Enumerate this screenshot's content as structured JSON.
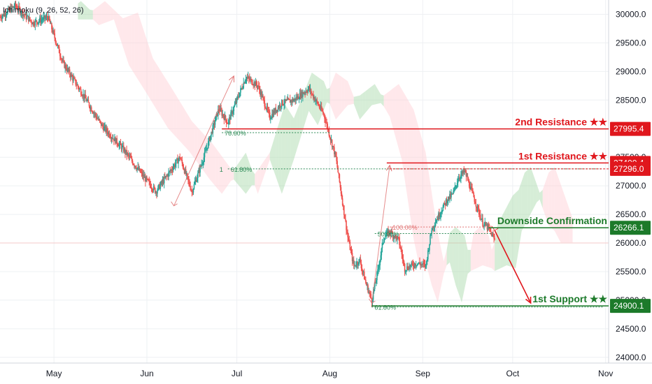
{
  "indicator_label": "Ichimoku (9, 26, 52, 26)",
  "colors": {
    "up": "#26a69a",
    "down": "#ef5350",
    "resistance": "#e0171d",
    "support": "#1c7a2a",
    "cloud_green": "#a5d6a7",
    "cloud_red": "#ffcdd2",
    "fib": "#2e8b57",
    "fib_red": "#e07070",
    "arrow": "#e0171d"
  },
  "chart_data": {
    "type": "candlestick",
    "x_range": [
      "2020-04-13",
      "2020-11-02"
    ],
    "ylim": [
      23900,
      30250
    ],
    "y_ticks": [
      24000,
      24500,
      25000,
      25500,
      26000,
      26500,
      27000,
      27500,
      28000,
      28500,
      29000,
      29500,
      30000
    ],
    "y_tick_labels": [
      "24000.0",
      "24500.0",
      "25000.0",
      "25500.0",
      "26000.0",
      "26500.0",
      "27000.0",
      "27500.0",
      "28000.0",
      "28500.0",
      "29000.0",
      "29500.0",
      "30000.0"
    ],
    "x_ticks": [
      {
        "date": "2020-05-01",
        "label": "May"
      },
      {
        "date": "2020-06-01",
        "label": "Jun"
      },
      {
        "date": "2020-07-01",
        "label": "Jul"
      },
      {
        "date": "2020-08-01",
        "label": "Aug"
      },
      {
        "date": "2020-09-01",
        "label": "Sep"
      },
      {
        "date": "2020-10-01",
        "label": "Oct"
      },
      {
        "date": "2020-11-01",
        "label": "Nov"
      }
    ],
    "price_path": [
      [
        "2020-04-13",
        29950
      ],
      [
        "2020-04-18",
        30150
      ],
      [
        "2020-04-24",
        29850
      ],
      [
        "2020-04-29",
        29950
      ],
      [
        "2020-05-04",
        29150
      ],
      [
        "2020-05-10",
        28650
      ],
      [
        "2020-05-17",
        28050
      ],
      [
        "2020-05-24",
        27650
      ],
      [
        "2020-05-31",
        27150
      ],
      [
        "2020-06-04",
        26900
      ],
      [
        "2020-06-08",
        27200
      ],
      [
        "2020-06-12",
        27500
      ],
      [
        "2020-06-16",
        26900
      ],
      [
        "2020-06-20",
        27500
      ],
      [
        "2020-06-25",
        28350
      ],
      [
        "2020-06-28",
        28100
      ],
      [
        "2020-07-01",
        28500
      ],
      [
        "2020-07-04",
        28900
      ],
      [
        "2020-07-08",
        28750
      ],
      [
        "2020-07-12",
        28200
      ],
      [
        "2020-07-16",
        28450
      ],
      [
        "2020-07-20",
        28500
      ],
      [
        "2020-07-25",
        28700
      ],
      [
        "2020-07-30",
        28250
      ],
      [
        "2020-08-03",
        27500
      ],
      [
        "2020-08-05",
        26800
      ],
      [
        "2020-08-07",
        26100
      ],
      [
        "2020-08-09",
        25600
      ],
      [
        "2020-08-11",
        25700
      ],
      [
        "2020-08-13",
        25300
      ],
      [
        "2020-08-15",
        25000
      ],
      [
        "2020-08-17",
        25500
      ],
      [
        "2020-08-19",
        26100
      ],
      [
        "2020-08-21",
        26200
      ],
      [
        "2020-08-24",
        26050
      ],
      [
        "2020-08-26",
        25550
      ],
      [
        "2020-08-30",
        25650
      ],
      [
        "2020-09-02",
        25600
      ],
      [
        "2020-09-04",
        26250
      ],
      [
        "2020-09-06",
        26450
      ],
      [
        "2020-09-09",
        26750
      ],
      [
        "2020-09-11",
        26850
      ],
      [
        "2020-09-13",
        27150
      ],
      [
        "2020-09-15",
        27250
      ],
      [
        "2020-09-17",
        26950
      ],
      [
        "2020-09-19",
        26650
      ],
      [
        "2020-09-21",
        26350
      ],
      [
        "2020-09-23",
        26250
      ],
      [
        "2020-09-25",
        26050
      ]
    ],
    "levels": [
      {
        "label": "2nd Resistance ★★",
        "value": 27995.4,
        "badge": "27995.4",
        "kind": "resistance",
        "from": "2020-06-26"
      },
      {
        "label": "1st Resistance ★★",
        "value": 27400.4,
        "badge": "27400.4",
        "kind": "resistance",
        "from": "2020-08-20"
      },
      {
        "label": "Downside Confirmation",
        "value": 26266.1,
        "badge": "26266.1",
        "kind": "support",
        "from": "2020-09-23"
      },
      {
        "label": "1st Support ★★",
        "value": 24900.1,
        "badge": "24900.1",
        "kind": "support",
        "from": "2020-08-15"
      }
    ],
    "extra_badge": {
      "value": 27296.0,
      "text": "27296.0"
    },
    "fib_lines": [
      {
        "value": 27930,
        "label": "78.60%",
        "from": "2020-06-26",
        "to": "2020-08-01"
      },
      {
        "value": 27296,
        "label": "61.80%",
        "from": "2020-06-28",
        "to": "2020-10-31",
        "prefix": "1"
      },
      {
        "value": 26165,
        "label": "50.00%",
        "from": "2020-08-16",
        "to": "2020-09-24"
      },
      {
        "value": 26280,
        "label": "100.00%",
        "from": "2020-08-21",
        "to": "2020-09-22"
      },
      {
        "value": 24880,
        "label": "61.80%",
        "from": "2020-08-15",
        "to": "2020-10-31"
      }
    ],
    "trend_arrows": [
      {
        "from": [
          "2020-06-10",
          26650
        ],
        "to": [
          "2020-06-30",
          28920
        ],
        "kind": "fib"
      },
      {
        "from": [
          "2020-08-15",
          24950
        ],
        "to": [
          "2020-08-21",
          27360
        ],
        "kind": "fib"
      },
      {
        "from": [
          "2020-09-25",
          26220
        ],
        "to": [
          "2020-10-07",
          24950
        ],
        "kind": "forecast"
      }
    ],
    "grid": true
  }
}
